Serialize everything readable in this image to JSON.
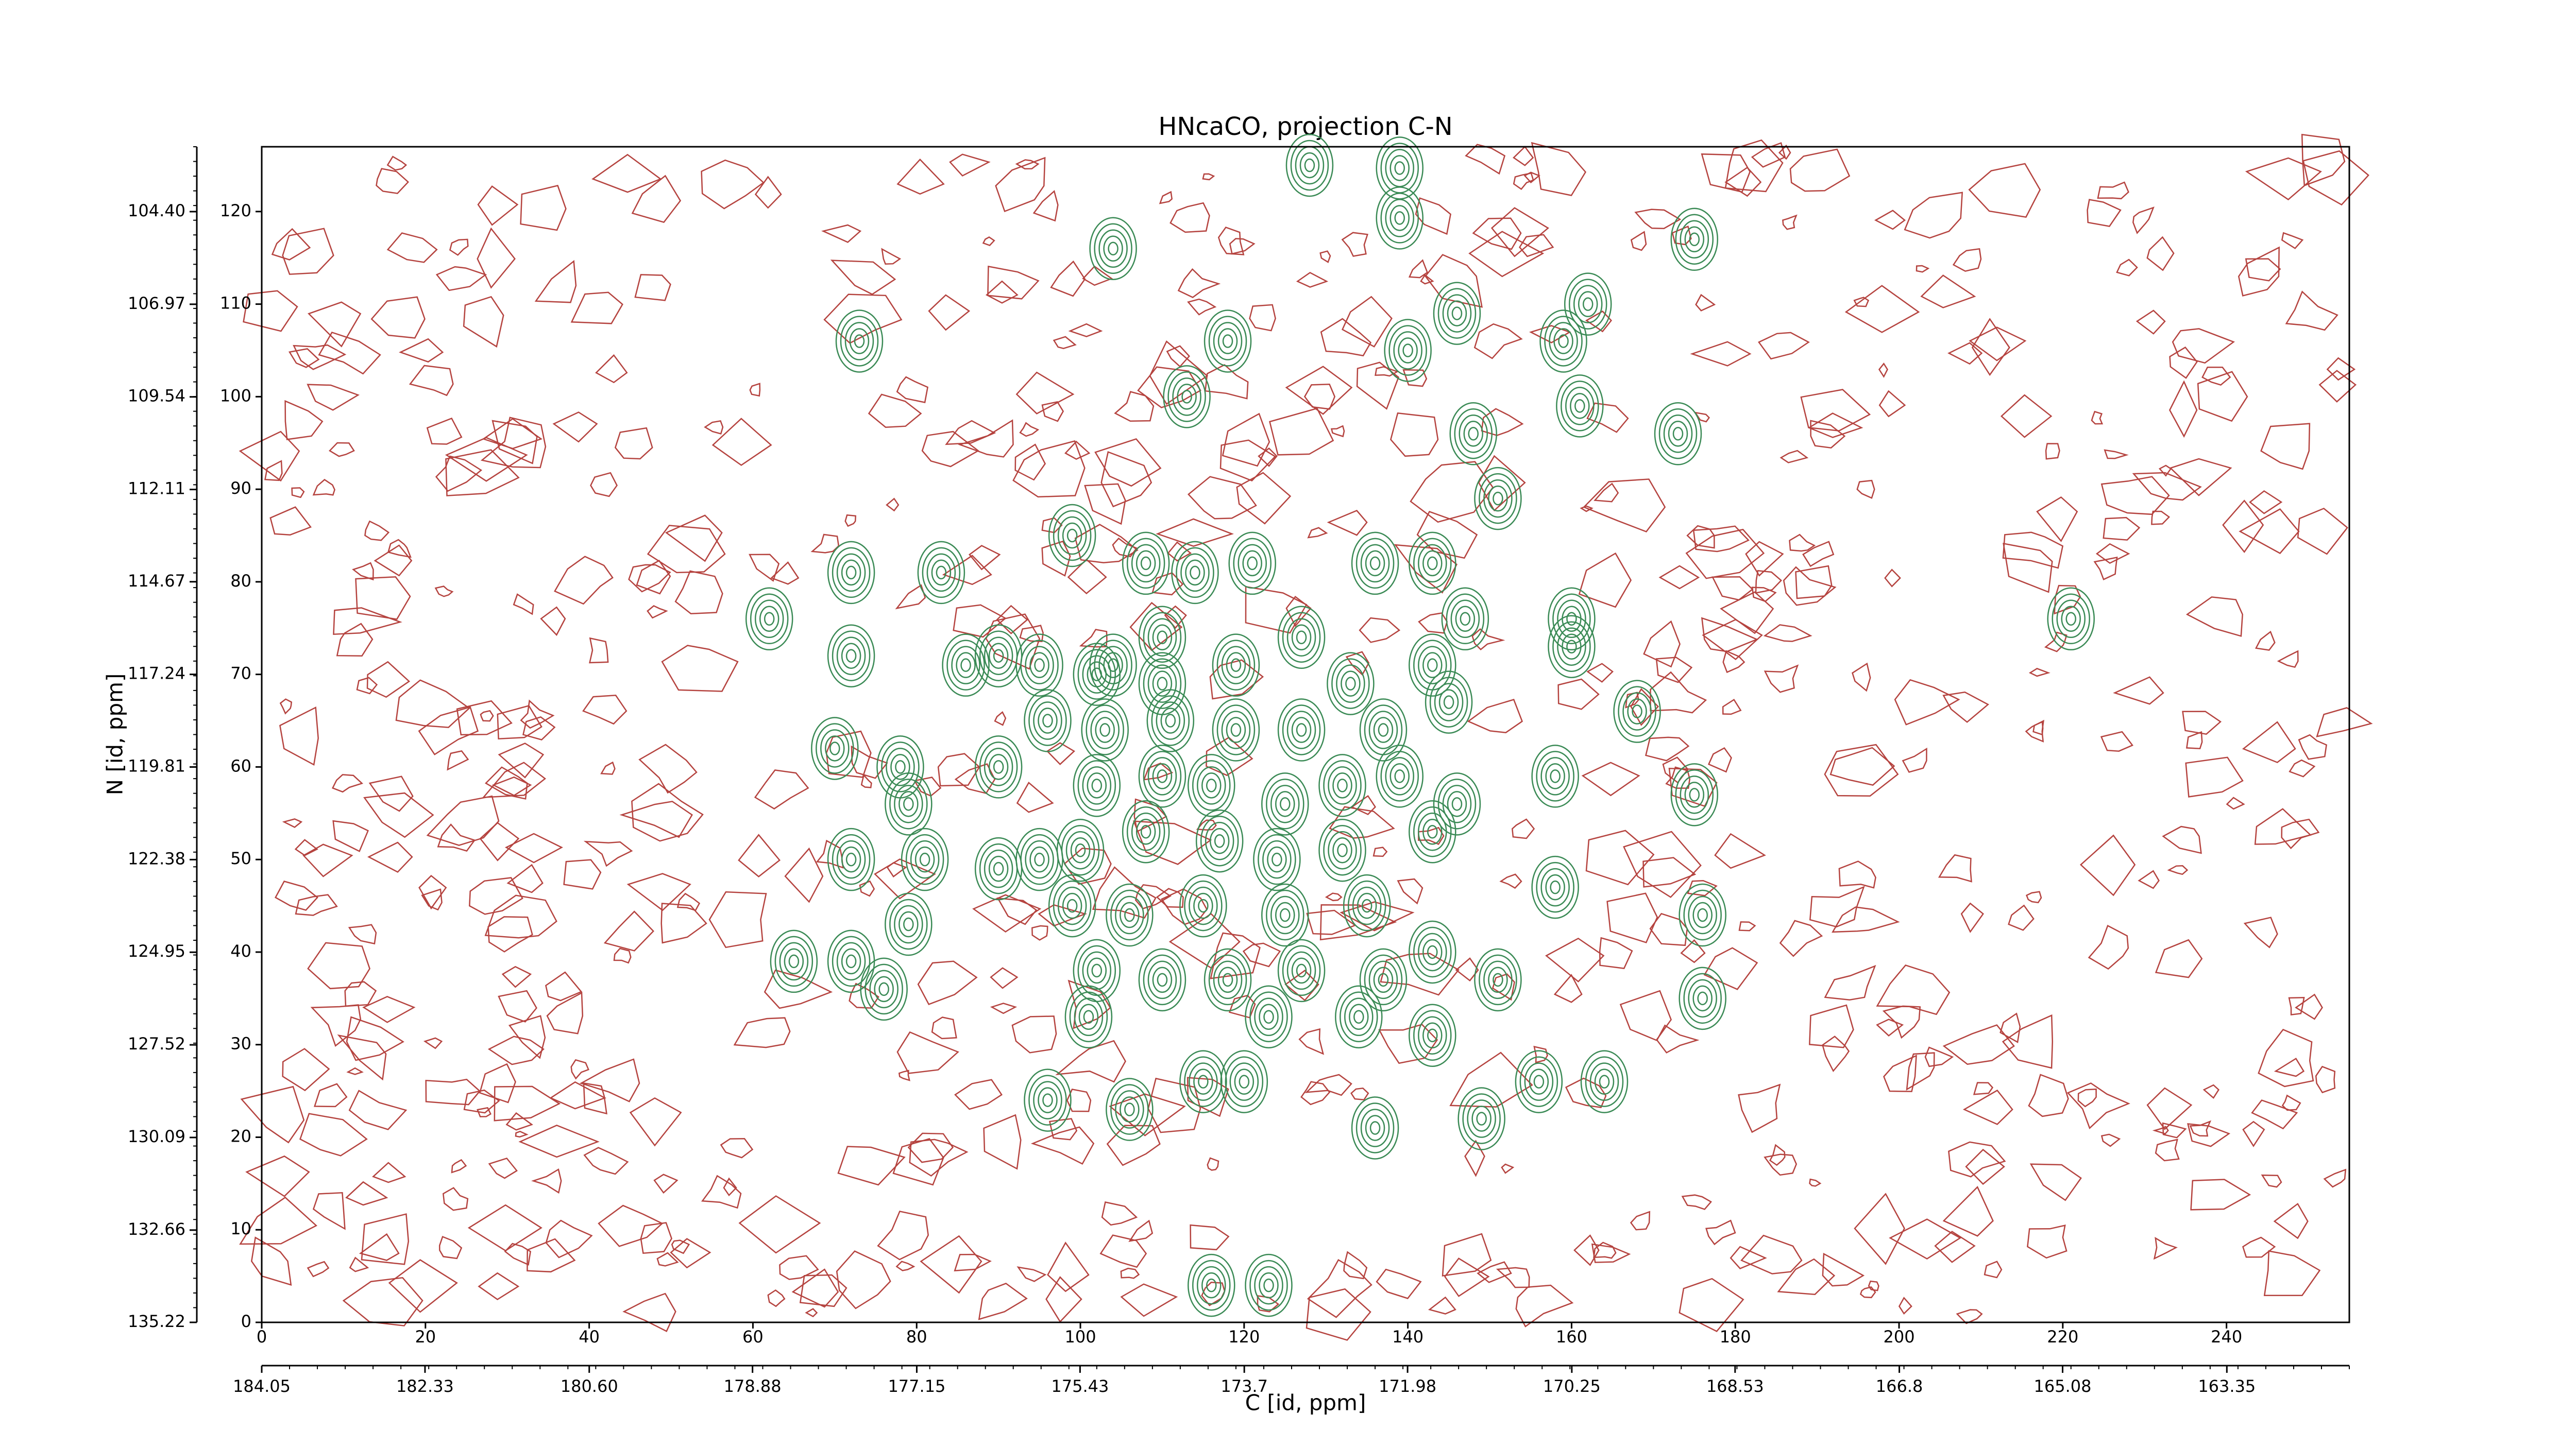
{
  "chart_data": {
    "type": "contour",
    "title": "HNcaCO, projection C-N",
    "xlabel": "C [id, ppm]",
    "ylabel": "N [id, ppm]",
    "xlim": [
      0,
      255
    ],
    "ylim": [
      0,
      127
    ],
    "xticks": [
      0,
      20,
      40,
      60,
      80,
      100,
      120,
      140,
      160,
      180,
      200,
      220,
      240
    ],
    "yticks": [
      0,
      10,
      20,
      30,
      40,
      50,
      60,
      70,
      80,
      90,
      100,
      110,
      120
    ],
    "x2lim": [
      184.05,
      162.06
    ],
    "x2ticks": [
      184.05,
      182.33,
      {
        "value": 180.6,
        "label": "180.60"
      },
      178.88,
      177.15,
      175.43,
      173.7,
      171.98,
      170.25,
      168.53,
      166.8,
      165.08,
      163.35
    ],
    "y2lim": [
      135.22,
      102.6
    ],
    "y2ticks": [
      135.22,
      132.66,
      130.09,
      127.52,
      124.95,
      122.38,
      119.81,
      117.24,
      114.67,
      112.11,
      109.54,
      106.97,
      {
        "value": 104.4,
        "label": "104.40"
      }
    ],
    "series": [
      {
        "color": "#3a8a55",
        "x": [
          128,
          139,
          139,
          175,
          104,
          162,
          146,
          118,
          73,
          140,
          159,
          161,
          173,
          148,
          113,
          151,
          99,
          83,
          72,
          136,
          62,
          221,
          90,
          72,
          160,
          160,
          168,
          70,
          78,
          90,
          79,
          158,
          175,
          72,
          81,
          90,
          95,
          158,
          176,
          79,
          65,
          72,
          76,
          143,
          151,
          176,
          143,
          156,
          164,
          115,
          120,
          96,
          106,
          149,
          136,
          116,
          123,
          102,
          108,
          114,
          121,
          110,
          119,
          127,
          133,
          143,
          147,
          143,
          96,
          103,
          111,
          119,
          127,
          137,
          145,
          102,
          110,
          116,
          125,
          132,
          139,
          146,
          100,
          108,
          117,
          124,
          132,
          143,
          99,
          106,
          115,
          125,
          135,
          102,
          110,
          118,
          127,
          137,
          101,
          123,
          134,
          86,
          95,
          104,
          110
        ],
        "y": [
          125,
          124.7,
          119.3,
          117,
          116,
          110,
          109,
          106,
          106,
          105,
          106,
          99,
          96,
          96,
          100,
          89,
          85,
          81,
          81,
          82,
          76,
          76,
          72,
          72,
          76,
          73,
          66,
          62,
          60,
          60,
          56,
          59,
          57,
          50,
          50,
          49,
          50,
          47,
          44,
          43,
          39,
          39,
          36,
          40,
          37,
          35,
          31,
          26,
          26,
          26,
          26,
          24,
          23,
          22,
          21,
          4,
          4,
          70,
          82,
          81,
          82,
          74,
          71,
          74,
          69,
          71,
          76,
          82,
          65,
          64,
          65,
          64,
          64,
          64,
          67,
          58,
          59,
          58,
          56,
          58,
          59,
          56,
          51,
          53,
          52,
          50,
          51,
          53,
          45,
          44,
          45,
          44,
          45,
          38,
          37,
          37,
          38,
          37,
          33,
          33,
          33,
          71,
          71,
          71,
          69
        ]
      },
      {
        "color": "#b5433f"
      }
    ]
  }
}
